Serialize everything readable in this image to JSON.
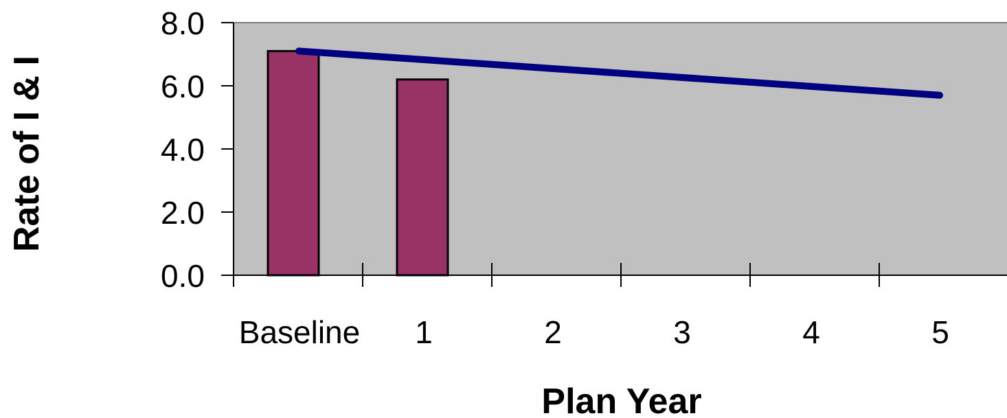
{
  "chart_data": {
    "type": "bar",
    "xlabel": "Plan Year",
    "ylabel": "Rate of I & I",
    "categories": [
      "Baseline",
      "1",
      "2",
      "3",
      "4",
      "5"
    ],
    "series": [
      {
        "type": "bar",
        "values": [
          7.1,
          6.2,
          null,
          null,
          null,
          null
        ]
      },
      {
        "type": "line",
        "values": [
          7.1,
          null,
          null,
          null,
          null,
          5.7
        ]
      }
    ],
    "ylim": [
      0,
      8
    ],
    "yticks": [
      "0.0",
      "2.0",
      "4.0",
      "6.0",
      "8.0"
    ],
    "grid": false,
    "legend": "none"
  },
  "colors": {
    "plot_background": "#c0c0c0",
    "bar_fill": "#993366",
    "bar_stroke": "#000000",
    "line": "#000080"
  }
}
